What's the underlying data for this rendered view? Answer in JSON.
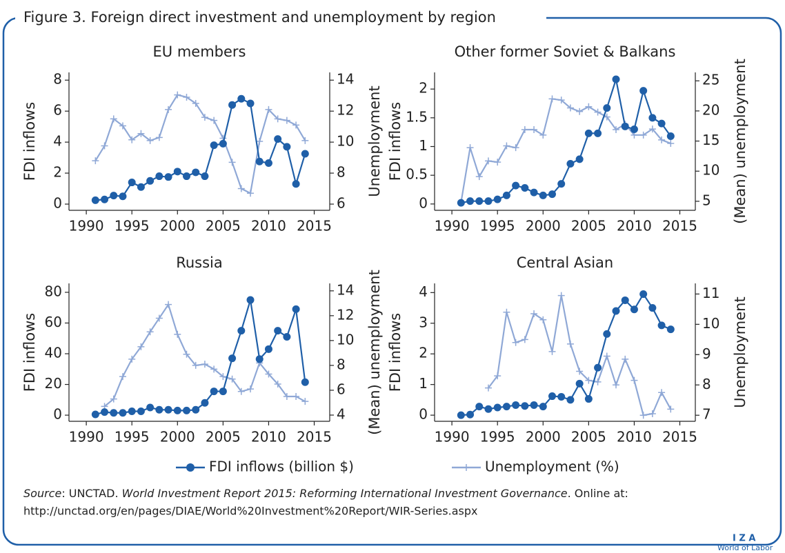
{
  "figure_title": "Figure 3. Foreign direct investment and unemployment by region",
  "chart_data": [
    {
      "type": "line",
      "title": "EU members",
      "y_label": "FDI inflows",
      "y2_label": "Unemployment",
      "x": [
        1991,
        1992,
        1993,
        1994,
        1995,
        1996,
        1997,
        1998,
        1999,
        2000,
        2001,
        2002,
        2003,
        2004,
        2005,
        2006,
        2007,
        2008,
        2009,
        2010,
        2011,
        2012,
        2013,
        2014
      ],
      "xlim": [
        1988.1,
        2016.7
      ],
      "xticks": [
        1990,
        1995,
        2000,
        2005,
        2010,
        2015
      ],
      "ylim": [
        -0.4,
        8.5
      ],
      "yticks": [
        0,
        2,
        4,
        6,
        8
      ],
      "y2lim": [
        5.6,
        14.5
      ],
      "y2ticks": [
        6,
        8,
        10,
        12,
        14
      ],
      "series": [
        {
          "name": "FDI inflows (billion $)",
          "color": "#1f5fa8",
          "marker": "circle",
          "values": [
            0.25,
            0.3,
            0.55,
            0.5,
            1.4,
            1.1,
            1.5,
            1.8,
            1.75,
            2.1,
            1.8,
            2.05,
            1.8,
            3.8,
            3.9,
            6.4,
            6.8,
            6.5,
            2.75,
            2.65,
            4.2,
            3.7,
            1.3,
            3.25
          ]
        },
        {
          "name": "Unemployment (%)",
          "color": "#8fa8d6",
          "marker": "plus",
          "axis": "y2",
          "values": [
            8.8,
            9.76,
            11.5,
            11.05,
            10.15,
            10.55,
            10.1,
            10.3,
            12.1,
            13.05,
            12.9,
            12.5,
            11.6,
            11.4,
            10.25,
            8.7,
            7.0,
            6.7,
            10.05,
            12.1,
            11.5,
            11.4,
            11.1,
            10.1
          ]
        }
      ]
    },
    {
      "type": "line",
      "title": "Other former Soviet & Balkans",
      "y_label": "FDI inflows",
      "y2_label": "(Mean) unemployment",
      "x": [
        1991,
        1992,
        1993,
        1994,
        1995,
        1996,
        1997,
        1998,
        1999,
        2000,
        2001,
        2002,
        2003,
        2004,
        2005,
        2006,
        2007,
        2008,
        2009,
        2010,
        2011,
        2012,
        2013,
        2014
      ],
      "xlim": [
        1988.1,
        2016.7
      ],
      "xticks": [
        1990,
        1995,
        2000,
        2005,
        2010,
        2015
      ],
      "ylim": [
        -0.11,
        2.29
      ],
      "yticks": [
        0,
        0.5,
        1,
        1.5,
        2
      ],
      "y2lim": [
        3.5,
        26.4
      ],
      "y2ticks": [
        5,
        10,
        15,
        20,
        25
      ],
      "series": [
        {
          "color": "#1f5fa8",
          "marker": "circle",
          "values": [
            0.02,
            0.05,
            0.05,
            0.05,
            0.08,
            0.15,
            0.32,
            0.28,
            0.2,
            0.15,
            0.17,
            0.35,
            0.7,
            0.78,
            1.23,
            1.23,
            1.67,
            2.17,
            1.35,
            1.3,
            1.97,
            1.5,
            1.4,
            1.18
          ]
        },
        {
          "color": "#8fa8d6",
          "marker": "plus",
          "axis": "y2",
          "values": [
            4.8,
            13.9,
            9.1,
            11.7,
            11.5,
            14.2,
            13.9,
            16.9,
            16.9,
            16.0,
            22.0,
            21.8,
            20.5,
            19.9,
            20.7,
            19.8,
            19.0,
            16.9,
            17.8,
            16.0,
            16.0,
            17.0,
            15.2,
            14.6
          ]
        }
      ]
    },
    {
      "type": "line",
      "title": "Russia",
      "y_label": "FDI inflows",
      "y2_label": "(Mean) unemployment",
      "x": [
        1991,
        1992,
        1993,
        1994,
        1995,
        1996,
        1997,
        1998,
        1999,
        2000,
        2001,
        2002,
        2003,
        2004,
        2005,
        2006,
        2007,
        2008,
        2009,
        2010,
        2011,
        2012,
        2013,
        2014
      ],
      "xlim": [
        1988.1,
        2016.7
      ],
      "xticks": [
        1990,
        1995,
        2000,
        2005,
        2010,
        2015
      ],
      "ylim": [
        -4,
        85.8
      ],
      "yticks": [
        0,
        20,
        40,
        60,
        80
      ],
      "y2lim": [
        3.5,
        14.6
      ],
      "y2ticks": [
        4,
        6,
        8,
        10,
        12,
        14
      ],
      "series": [
        {
          "color": "#1f5fa8",
          "marker": "circle",
          "values": [
            0.5,
            2,
            1.5,
            1.5,
            2.5,
            2.5,
            5,
            3.5,
            3.5,
            3,
            3,
            3.5,
            8,
            15.5,
            15.5,
            37,
            55,
            75,
            36.5,
            43,
            55,
            51,
            69,
            21.5
          ]
        },
        {
          "color": "#8fa8d6",
          "marker": "plus",
          "axis": "y2",
          "values": [
            null,
            4.7,
            5.3,
            7.1,
            8.5,
            9.5,
            10.7,
            11.8,
            12.9,
            10.5,
            8.9,
            8.0,
            8.1,
            7.7,
            7.1,
            6.9,
            5.9,
            6.1,
            8.2,
            7.3,
            6.5,
            5.5,
            5.5,
            5.1
          ]
        }
      ]
    },
    {
      "type": "line",
      "title": "Central Asian",
      "y_label": "FDI inflows",
      "y2_label": "Unemployment",
      "x": [
        1991,
        1992,
        1993,
        1994,
        1995,
        1996,
        1997,
        1998,
        1999,
        2000,
        2001,
        2002,
        2003,
        2004,
        2005,
        2006,
        2007,
        2008,
        2009,
        2010,
        2011,
        2012,
        2013,
        2014
      ],
      "xlim": [
        1988.1,
        2016.7
      ],
      "xticks": [
        1990,
        1995,
        2000,
        2005,
        2010,
        2015
      ],
      "ylim": [
        -0.2,
        4.3
      ],
      "yticks": [
        0,
        1,
        2,
        3,
        4
      ],
      "y2lim": [
        6.8,
        11.35
      ],
      "y2ticks": [
        7,
        8,
        9,
        10,
        11
      ],
      "series": [
        {
          "color": "#1f5fa8",
          "marker": "circle",
          "values": [
            0,
            0.02,
            0.28,
            0.2,
            0.25,
            0.28,
            0.33,
            0.3,
            0.33,
            0.28,
            0.62,
            0.6,
            0.5,
            1.03,
            0.53,
            1.55,
            2.65,
            3.4,
            3.75,
            3.45,
            3.95,
            3.5,
            2.93,
            2.8
          ]
        },
        {
          "color": "#8fa8d6",
          "marker": "plus",
          "axis": "y2",
          "values": [
            null,
            null,
            null,
            7.9,
            8.3,
            10.4,
            9.4,
            9.5,
            10.35,
            10.15,
            9.1,
            10.95,
            9.35,
            8.45,
            8.15,
            8.1,
            8.95,
            8.0,
            8.85,
            8.15,
            7.0,
            7.05,
            7.75,
            7.2
          ]
        }
      ]
    }
  ],
  "source": {
    "label": "Source",
    "text1": ": UNCTAD. ",
    "title": "World Investment Report 2015: Reforming International Investment Governance",
    "text2": ". Online at:",
    "url": "http://unctad.org/en/pages/DIAE/World%20Investment%20Report/WIR-Series.aspx"
  },
  "logo": {
    "name": "I Z A",
    "sub": "World of Labor"
  }
}
